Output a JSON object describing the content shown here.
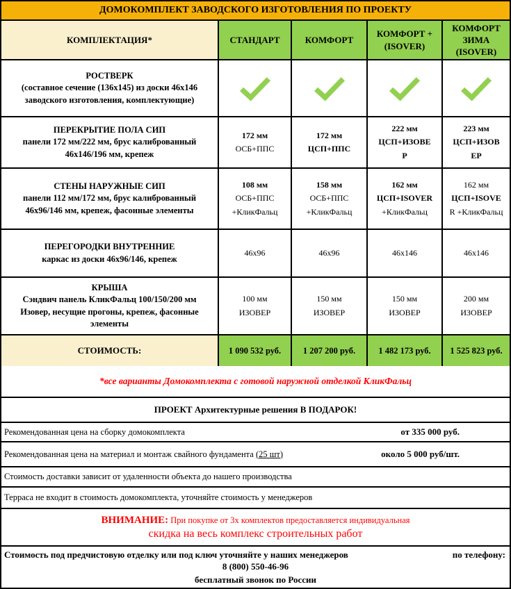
{
  "colors": {
    "title_bar": "#F6B109",
    "plan_header": "#92D050",
    "label_bg": "#FBF0CE",
    "check_green": "#92D050",
    "accent_red": "#FF0000",
    "border": "#000000"
  },
  "table": {
    "title": "ДОМОКОМПЛЕКТ ЗАВОДСКОГО ИЗГОТОВЛЕНИЯ ПО ПРОЕКТУ",
    "first_col_header": "КОМПЛЕКТАЦИЯ*",
    "plan_headers": [
      [
        "СТАНДАРТ"
      ],
      [
        "КОМФОРТ"
      ],
      [
        "КОМФОРТ +",
        "(ISOVER)"
      ],
      [
        "КОМФОРТ",
        "ЗИМА",
        "(ISOVER)"
      ]
    ],
    "rows": [
      {
        "id": "rostverk",
        "title": "РОСТВЕРК",
        "desc": "(составное сечение (136х145) из доски 46х146 заводского изготовления, комплектующие)",
        "kind": "check",
        "checks": [
          true,
          true,
          true,
          true
        ]
      },
      {
        "id": "perekrytie-pola",
        "title": "ПЕРЕКРЫТИЕ ПОЛА СИП",
        "desc": "панели 172 мм/222 мм, брус калиброванный 46х146/196 мм, крепеж",
        "kind": "values",
        "values": [
          [
            {
              "t": "172 мм",
              "b": true
            },
            {
              "t": "ОСБ+ППС",
              "b": false
            }
          ],
          [
            {
              "t": "172 мм",
              "b": true
            },
            {
              "t": "ЦСП+ППС",
              "b": true
            }
          ],
          [
            {
              "t": "222 мм",
              "b": true
            },
            {
              "t": "ЦСП+ИЗОВЕ",
              "b": true
            },
            {
              "t": "Р",
              "b": true
            }
          ],
          [
            {
              "t": "223 мм",
              "b": true
            },
            {
              "t": "ЦСП+ИЗОВ",
              "b": true
            },
            {
              "t": "ЕР",
              "b": true
            }
          ]
        ]
      },
      {
        "id": "steny-naruzhnye",
        "title": "СТЕНЫ НАРУЖНЫЕ СИП",
        "desc": "панели 112 мм/172 мм, брус калиброванный 46х96/146 мм, крепеж, фасонные элементы",
        "kind": "values",
        "values": [
          [
            {
              "t": "108 мм",
              "b": true
            },
            {
              "t": "ОСБ+ППС",
              "b": false
            },
            {
              "t": "+КликФальц",
              "b": false
            }
          ],
          [
            {
              "t": "158 мм",
              "b": true
            },
            {
              "t": "ОСБ+ППС",
              "b": false
            },
            {
              "t": "+КликФальц",
              "b": false
            }
          ],
          [
            {
              "t": "162 мм",
              "b": true
            },
            {
              "t": "ЦСП+ISOVER",
              "b": true
            },
            {
              "t": "+КликФальц",
              "b": false
            }
          ],
          [
            {
              "t": "162 мм",
              "b": false
            },
            {
              "t": "ЦСП+ISOVE",
              "b": true
            },
            {
              "t": "R +КликФальц",
              "b": false
            }
          ]
        ]
      },
      {
        "id": "peregorodki",
        "title": "ПЕРЕГОРОДКИ ВНУТРЕННИЕ",
        "desc": "каркас из доски 46х96/146, крепеж",
        "kind": "values",
        "values": [
          [
            {
              "t": "46х96",
              "b": false
            }
          ],
          [
            {
              "t": "46х96",
              "b": false
            }
          ],
          [
            {
              "t": "46х146",
              "b": false
            }
          ],
          [
            {
              "t": "46х146",
              "b": false
            }
          ]
        ]
      },
      {
        "id": "krysha",
        "title": "КРЫША",
        "desc": "Сэндвич панель КликФальц 100/150/200 мм Изовер, несущие прогоны, крепеж, фасонные элементы",
        "kind": "values",
        "values": [
          [
            {
              "t": "100 мм",
              "b": false
            },
            {
              "t": "ИЗОВЕР",
              "b": false
            }
          ],
          [
            {
              "t": "150 мм",
              "b": false
            },
            {
              "t": "ИЗОВЕР",
              "b": false
            }
          ],
          [
            {
              "t": "150 мм",
              "b": false
            },
            {
              "t": "ИЗОВЕР",
              "b": false
            }
          ],
          [
            {
              "t": "200 мм",
              "b": false
            },
            {
              "t": "ИЗОВЕР",
              "b": false
            }
          ]
        ]
      }
    ],
    "price_row": {
      "label": "СТОИМОСТЬ:",
      "values": [
        "1 090 532 руб.",
        "1 207 200 руб.",
        "1 482 173 руб.",
        "1 525 823 руб."
      ]
    }
  },
  "notes": {
    "footnote": "*все варианты Домокомплекта с готовой наружной отделкой КликФальц",
    "gift": "ПРОЕКТ Архитектурные решения В ПОДАРОК!",
    "assembly": {
      "label": "Рекомендованная цена на сборку домокомплекта",
      "value": "от 335 000 руб."
    },
    "foundation": {
      "label": "Рекомендованная цена на материал и монтаж  свайного фундамента ",
      "underlined": "(25 шт)",
      "value": "около 5 000 руб/шт."
    },
    "delivery": "Стоимость доставки зависит от удаленности объекта до нашего производства",
    "terrace": "Терраса не входит в стоимость домокомплекта, уточняйте стоимость у менеджеров",
    "attention": {
      "prefix": "ВНИМАНИЕ:",
      "line1": " При покупке от 3х комплектов предоставляется индивидуальная",
      "line2": "скидка на весь  комплекс строительных работ"
    },
    "contact": {
      "line1": "Стоимость под предчистовую отделку или под ключ уточняйте у наших менеджеров",
      "line1_right": "по телефону:",
      "phone": "8 (800) 550-46-96",
      "line3": "бесплатный звонок по России"
    }
  }
}
